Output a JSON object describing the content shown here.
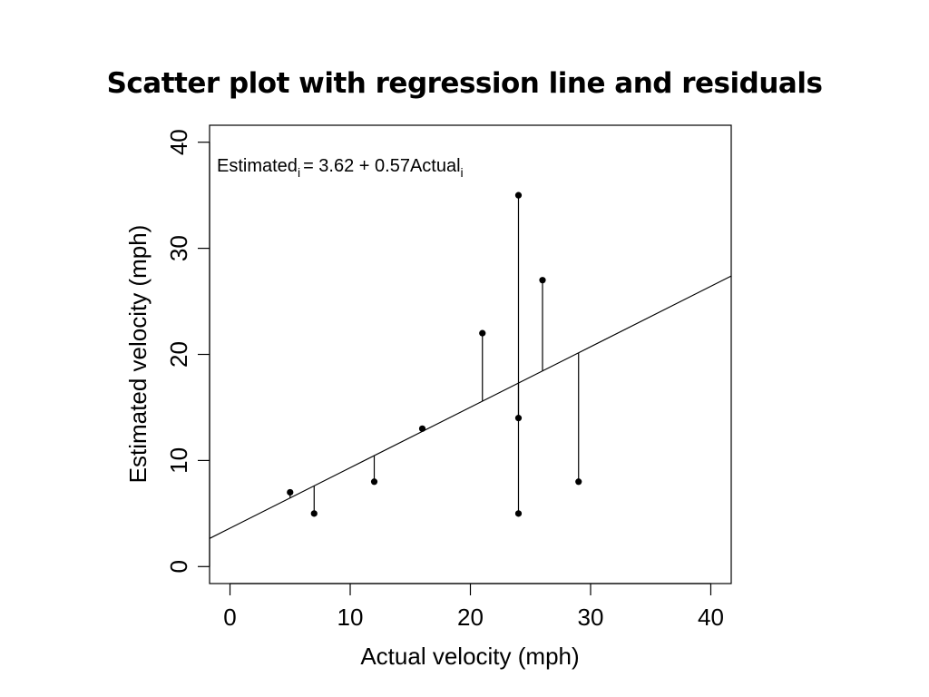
{
  "chart_data": {
    "type": "scatter",
    "title": "Scatter plot with regression line and residuals",
    "xlabel": "Actual velocity (mph)",
    "ylabel": "Estimated velocity (mph)",
    "xlim": [
      -1.7,
      41.7
    ],
    "ylim": [
      -1.6,
      41.6
    ],
    "xticks": [
      0,
      10,
      20,
      30,
      40
    ],
    "yticks": [
      0,
      10,
      20,
      30,
      40
    ],
    "grid": false,
    "points": [
      {
        "x": 5,
        "y": 7
      },
      {
        "x": 7,
        "y": 5
      },
      {
        "x": 12,
        "y": 8
      },
      {
        "x": 16,
        "y": 13
      },
      {
        "x": 21,
        "y": 22
      },
      {
        "x": 24,
        "y": 35
      },
      {
        "x": 24,
        "y": 14
      },
      {
        "x": 24,
        "y": 5
      },
      {
        "x": 26,
        "y": 27
      },
      {
        "x": 29,
        "y": 8
      }
    ],
    "regression": {
      "intercept": 3.62,
      "slope": 0.57
    },
    "residuals": true,
    "equation": {
      "lhs": "Estimated",
      "lhs_sub": "i",
      "rhs": "= 3.62 + 0.57Actual",
      "rhs_sub": "i"
    },
    "colors": {
      "points": "#000000",
      "lines": "#000000"
    }
  }
}
